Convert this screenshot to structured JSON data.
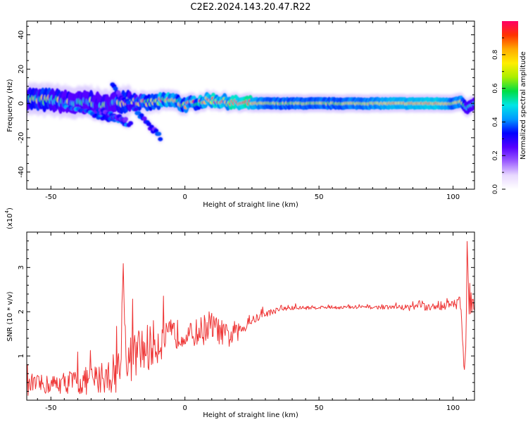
{
  "title": "C2E2.2024.143.20.47.R22",
  "colors": {
    "snr_line": "#ee3333",
    "axis": "#000000",
    "colormap": [
      "#ffffff",
      "#e8d8ff",
      "#9b5cff",
      "#5500ff",
      "#0000ff",
      "#0099ff",
      "#00e5e5",
      "#00dd44",
      "#aaee00",
      "#ffee00",
      "#ffaa00",
      "#ff3300",
      "#ff0066"
    ]
  },
  "chart_data": [
    {
      "type": "heatmap",
      "xlabel": "Height of straight line (km)",
      "ylabel": "Frequency (Hz)",
      "xlim": [
        -59,
        108
      ],
      "ylim": [
        -50,
        48
      ],
      "xticks": [
        "-50",
        "0",
        "50",
        "100"
      ],
      "yticks": [
        "-40",
        "-20",
        "0",
        "20",
        "40"
      ],
      "colorbar": {
        "label": "Normalized spectral amplitude",
        "range": [
          0,
          1
        ],
        "ticks": [
          "0.0",
          "0.2",
          "0.4",
          "0.6",
          "0.8"
        ]
      },
      "central_band": {
        "x": [
          -59,
          -55,
          -50,
          -45,
          -40,
          -35,
          -30,
          -25,
          -20,
          -15,
          -10,
          -5,
          0,
          5,
          10,
          15,
          20,
          25,
          30,
          40,
          50,
          60,
          70,
          80,
          85,
          90,
          95,
          100,
          103,
          105,
          108
        ],
        "center_hz": [
          3,
          2,
          2,
          1,
          0,
          1,
          -2,
          1,
          2,
          0,
          1,
          2,
          -1,
          1,
          2,
          1,
          0,
          0,
          0,
          0,
          0,
          0,
          0,
          0,
          0,
          0,
          0,
          0,
          1,
          -3,
          0
        ],
        "amplitude": [
          0.45,
          0.55,
          0.5,
          0.45,
          0.4,
          0.4,
          0.35,
          0.45,
          0.5,
          0.55,
          0.65,
          0.75,
          0.6,
          0.7,
          0.75,
          0.8,
          0.8,
          0.8,
          0.7,
          0.7,
          0.7,
          0.7,
          0.75,
          0.8,
          0.8,
          0.85,
          0.85,
          0.7,
          0.75,
          0.5,
          0.45
        ]
      },
      "descending_streaks": [
        {
          "x": [
            -45,
            -20
          ],
          "hz": [
            -2,
            -12
          ],
          "amplitude": 0.35
        },
        {
          "x": [
            -33,
            -22
          ],
          "hz": [
            -4,
            -10
          ],
          "amplitude": 0.3
        },
        {
          "x": [
            -27,
            -9
          ],
          "hz": [
            10,
            -20
          ],
          "amplitude": 0.3
        }
      ]
    },
    {
      "type": "line",
      "xlabel": "Height of straight line (km)",
      "ylabel": "SNR (10 * v/v)",
      "y_multiplier_label": "(x10",
      "y_multiplier_exponent": "4",
      "xlim": [
        -59,
        108
      ],
      "ylim": [
        0,
        3.8
      ],
      "xticks": [
        "-50",
        "0",
        "50",
        "100"
      ],
      "yticks": [
        "1",
        "2",
        "3"
      ],
      "series": [
        {
          "x": [
            -59,
            -55,
            -50,
            -45,
            -40,
            -35,
            -30,
            -27,
            -24,
            -23,
            -22,
            -20,
            -17,
            -15,
            -13,
            -11,
            -9,
            -7,
            -5,
            -3,
            0,
            3,
            6,
            9,
            12,
            15,
            18,
            21,
            25,
            30,
            35,
            40,
            50,
            60,
            70,
            80,
            86,
            88,
            90,
            95,
            100,
            102,
            103,
            104,
            104.7,
            105.3,
            106,
            107,
            108
          ],
          "y": [
            0.3,
            0.35,
            0.35,
            0.4,
            0.4,
            0.45,
            0.5,
            0.6,
            0.75,
            3.1,
            0.9,
            0.95,
            1.1,
            1.15,
            1.2,
            1.3,
            1.35,
            1.4,
            1.45,
            1.5,
            1.45,
            1.5,
            1.55,
            1.7,
            1.6,
            1.45,
            1.45,
            1.6,
            1.8,
            1.95,
            2.05,
            2.08,
            2.1,
            2.1,
            2.1,
            2.1,
            2.1,
            2.2,
            2.05,
            2.15,
            2.15,
            2.2,
            2.3,
            0.9,
            0.75,
            3.7,
            2.2,
            2.3,
            2.05
          ],
          "noise_amplitude": [
            0.2,
            0.22,
            0.22,
            0.25,
            0.3,
            0.33,
            0.35,
            0.45,
            0.55,
            0.2,
            0.45,
            0.55,
            0.55,
            0.6,
            0.55,
            0.55,
            0.45,
            0.35,
            0.4,
            0.35,
            0.2,
            0.3,
            0.35,
            0.35,
            0.3,
            0.3,
            0.25,
            0.15,
            0.1,
            0.08,
            0.06,
            0.05,
            0.04,
            0.04,
            0.04,
            0.05,
            0.1,
            0.12,
            0.1,
            0.12,
            0.1,
            0.15,
            0.3,
            0.25,
            0.2,
            0.2,
            0.3,
            0.35,
            0.1
          ]
        }
      ]
    }
  ]
}
